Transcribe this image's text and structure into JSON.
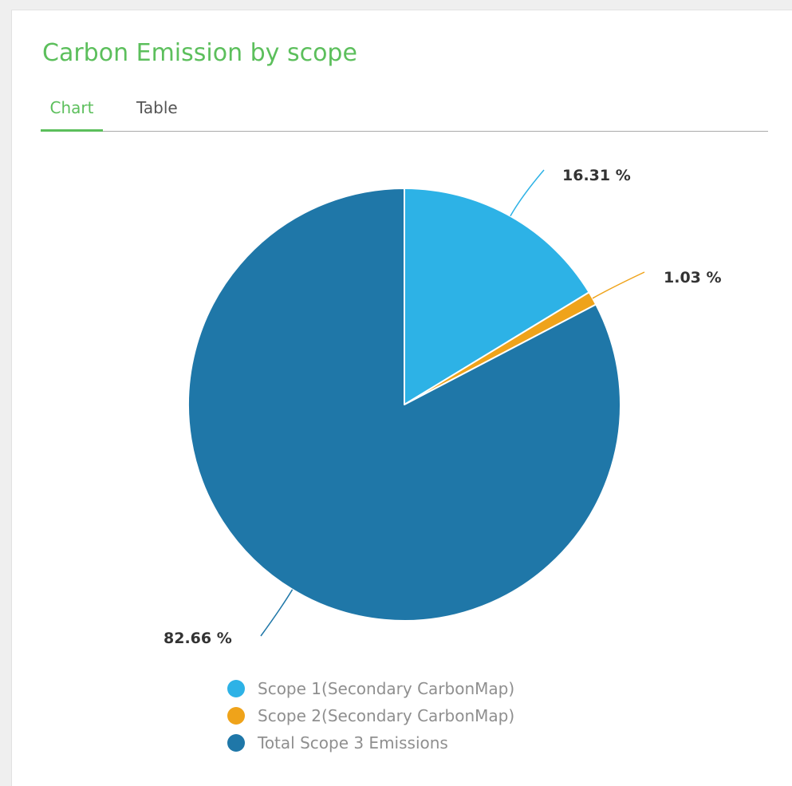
{
  "header": {
    "title": "Carbon Emission by scope"
  },
  "tabs": [
    {
      "label": "Chart",
      "active": true
    },
    {
      "label": "Table",
      "active": false
    }
  ],
  "colors": {
    "accent": "#5cbf5c",
    "scope1": "#2db2e6",
    "scope2": "#efa31a",
    "scope3": "#1f77a8"
  },
  "chart_data": {
    "type": "pie",
    "title": "",
    "slices": [
      {
        "name": "Scope 1(Secondary CarbonMap)",
        "value": 16.31,
        "label": "16.31 %",
        "color": "#2db2e6"
      },
      {
        "name": "Scope 2(Secondary CarbonMap)",
        "value": 1.03,
        "label": "1.03 %",
        "color": "#efa31a"
      },
      {
        "name": "Total Scope 3 Emissions",
        "value": 82.66,
        "label": "82.66 %",
        "color": "#1f77a8"
      }
    ],
    "legend_position": "bottom"
  }
}
